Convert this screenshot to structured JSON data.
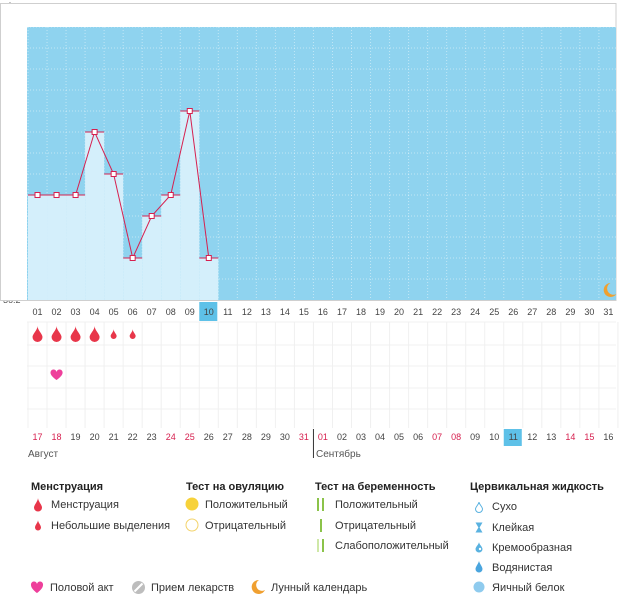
{
  "chart_data": {
    "type": "bar",
    "unit_label": "°C",
    "y_ticks": [
      "37.5",
      "37.4",
      "37.3",
      "37.2",
      "37.1",
      "37",
      "36.9",
      "36.8",
      "36.7",
      "36.6",
      "36.5",
      "36.4",
      "36.3",
      "36.2"
    ],
    "ylim": [
      36.2,
      37.5
    ],
    "day_labels": [
      "01",
      "02",
      "03",
      "04",
      "05",
      "06",
      "07",
      "08",
      "09",
      "10",
      "11",
      "12",
      "13",
      "14",
      "15",
      "16",
      "17",
      "18",
      "19",
      "20",
      "21",
      "22",
      "23",
      "24",
      "25",
      "26",
      "27",
      "28",
      "29",
      "30",
      "31"
    ],
    "temperatures": [
      36.7,
      36.7,
      36.7,
      37.0,
      36.8,
      36.4,
      36.6,
      36.7,
      37.1,
      36.4
    ],
    "today_index": 9,
    "menstruation": [
      "heavy",
      "heavy",
      "heavy",
      "heavy",
      "light",
      "light"
    ],
    "intercourse_days": [
      1
    ],
    "moon_day_index": 30,
    "dates": [
      {
        "label": "17",
        "red": true
      },
      {
        "label": "18",
        "red": true
      },
      {
        "label": "19",
        "red": false
      },
      {
        "label": "20",
        "red": false
      },
      {
        "label": "21",
        "red": false
      },
      {
        "label": "22",
        "red": false
      },
      {
        "label": "23",
        "red": false
      },
      {
        "label": "24",
        "red": true
      },
      {
        "label": "25",
        "red": true
      },
      {
        "label": "26",
        "red": false
      },
      {
        "label": "27",
        "red": false
      },
      {
        "label": "28",
        "red": false
      },
      {
        "label": "29",
        "red": false
      },
      {
        "label": "30",
        "red": false
      },
      {
        "label": "31",
        "red": true
      },
      {
        "label": "01",
        "red": true
      },
      {
        "label": "02",
        "red": false
      },
      {
        "label": "03",
        "red": false
      },
      {
        "label": "04",
        "red": false
      },
      {
        "label": "05",
        "red": false
      },
      {
        "label": "06",
        "red": false
      },
      {
        "label": "07",
        "red": true
      },
      {
        "label": "08",
        "red": true
      },
      {
        "label": "09",
        "red": false
      },
      {
        "label": "10",
        "red": false
      },
      {
        "label": "11",
        "red": false
      },
      {
        "label": "12",
        "red": false
      },
      {
        "label": "13",
        "red": false
      },
      {
        "label": "14",
        "red": true
      },
      {
        "label": "15",
        "red": true
      },
      {
        "label": "16",
        "red": false
      }
    ],
    "month_left": "Август",
    "month_right": "Сентябрь",
    "colors": {
      "plot_bg": "#8fd3ef",
      "bar": "#d4effb",
      "line": "#d6204f",
      "today": "#5ec1e8",
      "drop": "#e8364a",
      "heart": "#ee3f9b"
    }
  },
  "legend": {
    "menstruation": {
      "title": "Менструация",
      "items": [
        "Менструация",
        "Небольшие выделения"
      ]
    },
    "ovulation": {
      "title": "Тест на овуляцию",
      "items": [
        "Положительный",
        "Отрицательный"
      ]
    },
    "pregnancy": {
      "title": "Тест на беременность",
      "items": [
        "Положительный",
        "Отрицательный",
        "Слабоположительный"
      ]
    },
    "cervical": {
      "title": "Цервикальная жидкость",
      "items": [
        "Сухо",
        "Клейкая",
        "Кремообразная",
        "Водянистая",
        "Яичный белок"
      ]
    },
    "bottom": [
      "Половой акт",
      "Прием лекарств",
      "Лунный календарь"
    ]
  }
}
